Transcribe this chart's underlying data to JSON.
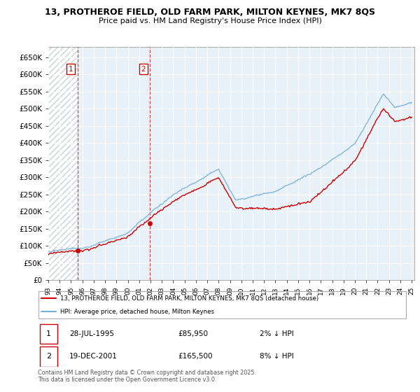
{
  "title_line1": "13, PROTHEROE FIELD, OLD FARM PARK, MILTON KEYNES, MK7 8QS",
  "title_line2": "Price paid vs. HM Land Registry's House Price Index (HPI)",
  "ylim": [
    0,
    680000
  ],
  "yticks": [
    0,
    50000,
    100000,
    150000,
    200000,
    250000,
    300000,
    350000,
    400000,
    450000,
    500000,
    550000,
    600000,
    650000
  ],
  "ytick_labels": [
    "£0",
    "£50K",
    "£100K",
    "£150K",
    "£200K",
    "£250K",
    "£300K",
    "£350K",
    "£400K",
    "£450K",
    "£500K",
    "£550K",
    "£600K",
    "£650K"
  ],
  "purchase1_date": 1995.57,
  "purchase1_price": 85950,
  "purchase2_date": 2001.96,
  "purchase2_price": 165500,
  "legend_line1": "13, PROTHEROE FIELD, OLD FARM PARK, MILTON KEYNES, MK7 8QS (detached house)",
  "legend_line2": "HPI: Average price, detached house, Milton Keynes",
  "footer": "Contains HM Land Registry data © Crown copyright and database right 2025.\nThis data is licensed under the Open Government Licence v3.0.",
  "line_color_red": "#cc0000",
  "line_color_blue": "#7ab0d4",
  "bg_light_blue": "#e8f0f8",
  "bg_hatch_color": "#c8d0d8"
}
